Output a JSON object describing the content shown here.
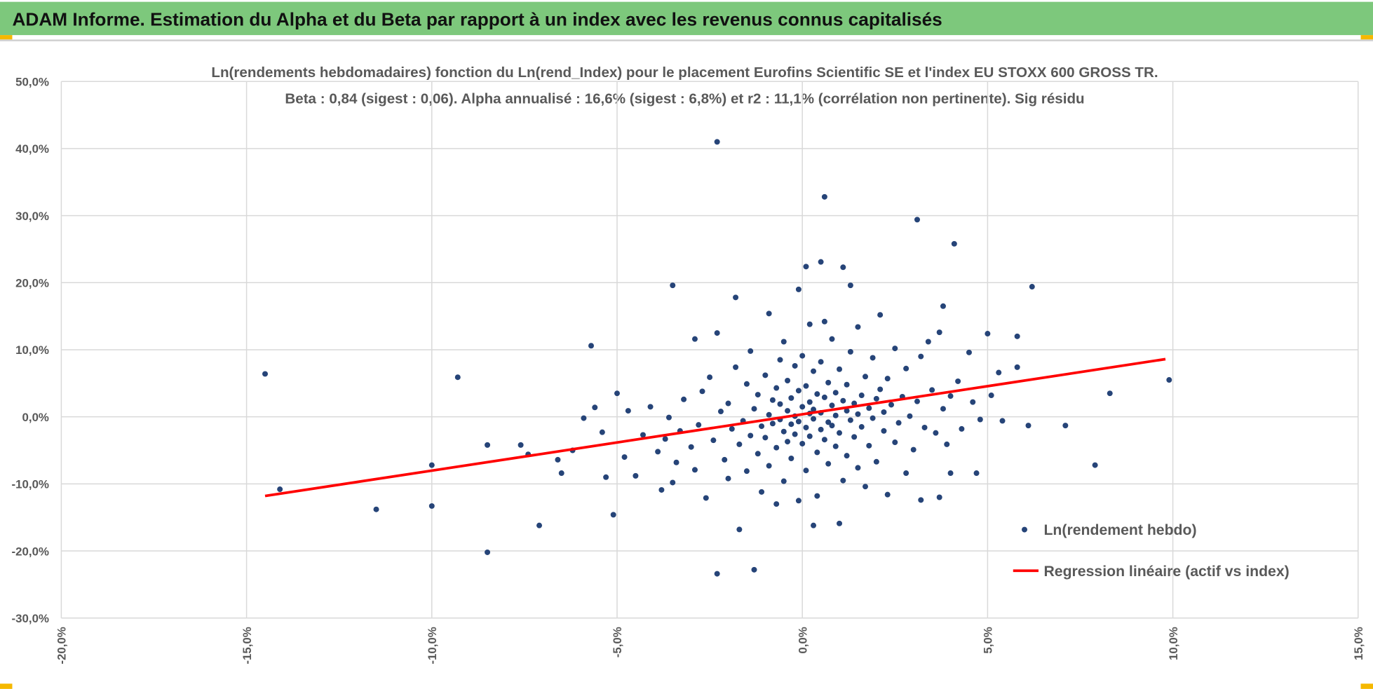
{
  "header": {
    "title": "ADAM Informe. Estimation du Alpha et du Beta par rapport à un index avec les revenus connus capitalisés"
  },
  "colors": {
    "header_bg": "#7DC87C",
    "points": "#264478",
    "regression": "#FF0000",
    "grid": "#D9D9D9",
    "corner": "#F5B800"
  },
  "chart_data": {
    "type": "scatter",
    "title": "Ln(rendements hebdomadaires) fonction du Ln(rend_Index) pour le placement Eurofins Scientific SE et l'index EU STOXX 600 GROSS TR.",
    "subtitle": "Beta : 0,84 (sigest : 0,06). Alpha annualisé : 16,6% (sigest : 6,8%) et r2 : 11,1% (corrélation non pertinente). Sig résidu",
    "xlabel": "",
    "ylabel": "",
    "xlim": [
      -20,
      15
    ],
    "ylim": [
      -30,
      50
    ],
    "x_ticks": [
      -20,
      -15,
      -10,
      -5,
      0,
      5,
      10,
      15
    ],
    "x_tick_labels": [
      "-20,0%",
      "-15,0%",
      "-10,0%",
      "-5,0%",
      "0,0%",
      "5,0%",
      "10,0%",
      "15,0%"
    ],
    "y_ticks": [
      -30,
      -20,
      -10,
      0,
      10,
      20,
      30,
      40,
      50
    ],
    "y_tick_labels": [
      "-30,0%",
      "-20,0%",
      "-10,0%",
      "0,0%",
      "10,0%",
      "20,0%",
      "30,0%",
      "40,0%",
      "50,0%"
    ],
    "grid": true,
    "legend_position": "bottom-right",
    "series": [
      {
        "name": "Ln(rendement hebdo)",
        "kind": "scatter",
        "points": [
          [
            -14.5,
            6.4
          ],
          [
            -14.1,
            -10.8
          ],
          [
            -11.5,
            -13.8
          ],
          [
            -10.0,
            -7.2
          ],
          [
            -10.0,
            -13.3
          ],
          [
            -9.3,
            5.9
          ],
          [
            -8.5,
            -4.2
          ],
          [
            -8.5,
            -20.2
          ],
          [
            -7.6,
            -4.2
          ],
          [
            -7.4,
            -5.6
          ],
          [
            -7.1,
            -16.2
          ],
          [
            -6.6,
            -6.4
          ],
          [
            -6.5,
            -8.4
          ],
          [
            -6.2,
            -5.0
          ],
          [
            -5.9,
            -0.2
          ],
          [
            -5.7,
            10.6
          ],
          [
            -5.6,
            1.4
          ],
          [
            -5.4,
            -2.3
          ],
          [
            -5.3,
            -9.0
          ],
          [
            -5.1,
            -14.6
          ],
          [
            -5.0,
            3.5
          ],
          [
            -4.8,
            -6.0
          ],
          [
            -4.7,
            0.9
          ],
          [
            -4.5,
            -8.8
          ],
          [
            -4.3,
            -2.7
          ],
          [
            -4.1,
            1.5
          ],
          [
            -3.9,
            -5.2
          ],
          [
            -3.8,
            -10.9
          ],
          [
            -3.7,
            -3.3
          ],
          [
            -3.6,
            -0.1
          ],
          [
            -3.5,
            19.6
          ],
          [
            -3.5,
            -9.8
          ],
          [
            -3.4,
            -6.8
          ],
          [
            -3.3,
            -2.1
          ],
          [
            -3.2,
            2.6
          ],
          [
            -3.0,
            -4.5
          ],
          [
            -2.9,
            11.6
          ],
          [
            -2.9,
            -7.9
          ],
          [
            -2.8,
            -1.2
          ],
          [
            -2.7,
            3.8
          ],
          [
            -2.6,
            -12.1
          ],
          [
            -2.5,
            5.9
          ],
          [
            -2.4,
            -3.5
          ],
          [
            -2.3,
            41.0
          ],
          [
            -2.3,
            -23.4
          ],
          [
            -2.3,
            12.5
          ],
          [
            -2.2,
            0.8
          ],
          [
            -2.1,
            -6.4
          ],
          [
            -2.0,
            -9.2
          ],
          [
            -2.0,
            2.0
          ],
          [
            -1.9,
            -1.8
          ],
          [
            -1.8,
            17.8
          ],
          [
            -1.8,
            7.4
          ],
          [
            -1.7,
            -4.1
          ],
          [
            -1.7,
            -16.8
          ],
          [
            -1.6,
            -0.6
          ],
          [
            -1.5,
            4.9
          ],
          [
            -1.5,
            -8.1
          ],
          [
            -1.4,
            -2.8
          ],
          [
            -1.4,
            9.8
          ],
          [
            -1.3,
            -22.8
          ],
          [
            -1.3,
            1.2
          ],
          [
            -1.2,
            -5.5
          ],
          [
            -1.2,
            3.3
          ],
          [
            -1.1,
            -11.2
          ],
          [
            -1.1,
            -1.4
          ],
          [
            -1.0,
            6.2
          ],
          [
            -1.0,
            -3.1
          ],
          [
            -0.9,
            15.4
          ],
          [
            -0.9,
            0.3
          ],
          [
            -0.9,
            -7.3
          ],
          [
            -0.8,
            2.5
          ],
          [
            -0.8,
            -1.0
          ],
          [
            -0.7,
            -13.0
          ],
          [
            -0.7,
            4.3
          ],
          [
            -0.7,
            -4.6
          ],
          [
            -0.6,
            8.5
          ],
          [
            -0.6,
            -0.4
          ],
          [
            -0.6,
            1.9
          ],
          [
            -0.5,
            -2.2
          ],
          [
            -0.5,
            -9.6
          ],
          [
            -0.5,
            11.2
          ],
          [
            -0.4,
            0.9
          ],
          [
            -0.4,
            -3.7
          ],
          [
            -0.4,
            5.4
          ],
          [
            -0.3,
            -1.1
          ],
          [
            -0.3,
            2.8
          ],
          [
            -0.3,
            -6.2
          ],
          [
            -0.2,
            0.1
          ],
          [
            -0.2,
            7.6
          ],
          [
            -0.2,
            -2.6
          ],
          [
            -0.1,
            19.0
          ],
          [
            -0.1,
            -0.7
          ],
          [
            -0.1,
            3.9
          ],
          [
            -0.1,
            -12.5
          ],
          [
            0.0,
            1.5
          ],
          [
            0.0,
            -4.0
          ],
          [
            0.0,
            9.1
          ],
          [
            0.1,
            -1.6
          ],
          [
            0.1,
            22.4
          ],
          [
            0.1,
            4.6
          ],
          [
            0.1,
            -8.0
          ],
          [
            0.2,
            0.5
          ],
          [
            0.2,
            2.2
          ],
          [
            0.2,
            -2.9
          ],
          [
            0.2,
            13.8
          ],
          [
            0.3,
            -16.2
          ],
          [
            0.3,
            6.8
          ],
          [
            0.3,
            -0.3
          ],
          [
            0.3,
            1.1
          ],
          [
            0.4,
            -5.3
          ],
          [
            0.4,
            3.4
          ],
          [
            0.4,
            -11.8
          ],
          [
            0.5,
            23.1
          ],
          [
            0.5,
            0.6
          ],
          [
            0.5,
            -1.9
          ],
          [
            0.5,
            8.2
          ],
          [
            0.6,
            32.8
          ],
          [
            0.6,
            2.9
          ],
          [
            0.6,
            -3.4
          ],
          [
            0.6,
            14.2
          ],
          [
            0.7,
            -0.8
          ],
          [
            0.7,
            5.1
          ],
          [
            0.7,
            -7.0
          ],
          [
            0.8,
            1.7
          ],
          [
            0.8,
            -1.3
          ],
          [
            0.8,
            11.6
          ],
          [
            0.9,
            3.6
          ],
          [
            0.9,
            -4.4
          ],
          [
            0.9,
            0.2
          ],
          [
            1.0,
            -15.9
          ],
          [
            1.0,
            7.1
          ],
          [
            1.0,
            -2.4
          ],
          [
            1.1,
            22.3
          ],
          [
            1.1,
            2.4
          ],
          [
            1.1,
            -9.5
          ],
          [
            1.2,
            0.9
          ],
          [
            1.2,
            4.8
          ],
          [
            1.2,
            -5.8
          ],
          [
            1.3,
            19.6
          ],
          [
            1.3,
            -0.5
          ],
          [
            1.3,
            9.7
          ],
          [
            1.4,
            2.0
          ],
          [
            1.4,
            -3.0
          ],
          [
            1.5,
            13.4
          ],
          [
            1.5,
            0.4
          ],
          [
            1.5,
            -7.6
          ],
          [
            1.6,
            3.2
          ],
          [
            1.6,
            -1.5
          ],
          [
            1.7,
            6.0
          ],
          [
            1.7,
            -10.4
          ],
          [
            1.8,
            1.3
          ],
          [
            1.8,
            -4.3
          ],
          [
            1.9,
            8.8
          ],
          [
            1.9,
            -0.2
          ],
          [
            2.0,
            2.7
          ],
          [
            2.0,
            -6.7
          ],
          [
            2.1,
            15.2
          ],
          [
            2.1,
            4.1
          ],
          [
            2.2,
            -2.1
          ],
          [
            2.2,
            0.7
          ],
          [
            2.3,
            -11.6
          ],
          [
            2.3,
            5.7
          ],
          [
            2.4,
            1.8
          ],
          [
            2.5,
            -3.8
          ],
          [
            2.5,
            10.2
          ],
          [
            2.6,
            -0.9
          ],
          [
            2.7,
            3.0
          ],
          [
            2.8,
            -8.4
          ],
          [
            2.8,
            7.2
          ],
          [
            2.9,
            0.1
          ],
          [
            3.0,
            -4.9
          ],
          [
            3.1,
            29.4
          ],
          [
            3.1,
            2.3
          ],
          [
            3.2,
            -12.4
          ],
          [
            3.2,
            9.0
          ],
          [
            3.3,
            -1.6
          ],
          [
            3.4,
            11.2
          ],
          [
            3.5,
            4.0
          ],
          [
            3.6,
            -2.4
          ],
          [
            3.7,
            12.6
          ],
          [
            3.7,
            -12.0
          ],
          [
            3.8,
            16.5
          ],
          [
            3.8,
            1.2
          ],
          [
            3.9,
            -4.1
          ],
          [
            4.0,
            -8.4
          ],
          [
            4.0,
            3.1
          ],
          [
            4.1,
            25.8
          ],
          [
            4.2,
            5.3
          ],
          [
            4.3,
            -1.8
          ],
          [
            4.5,
            9.6
          ],
          [
            4.6,
            2.2
          ],
          [
            4.7,
            -8.4
          ],
          [
            4.8,
            -0.4
          ],
          [
            5.0,
            12.4
          ],
          [
            5.1,
            3.2
          ],
          [
            5.3,
            6.6
          ],
          [
            5.4,
            -0.6
          ],
          [
            5.8,
            12.0
          ],
          [
            5.8,
            7.4
          ],
          [
            6.1,
            -1.3
          ],
          [
            6.2,
            19.4
          ],
          [
            7.1,
            -1.3
          ],
          [
            7.9,
            -7.2
          ],
          [
            8.3,
            3.5
          ],
          [
            9.9,
            5.5
          ]
        ]
      },
      {
        "name": "Regression linéaire (actif vs index)",
        "kind": "line",
        "x": [
          -14.5,
          9.8
        ],
        "y": [
          -11.8,
          8.6
        ],
        "beta": 0.84
      }
    ]
  }
}
